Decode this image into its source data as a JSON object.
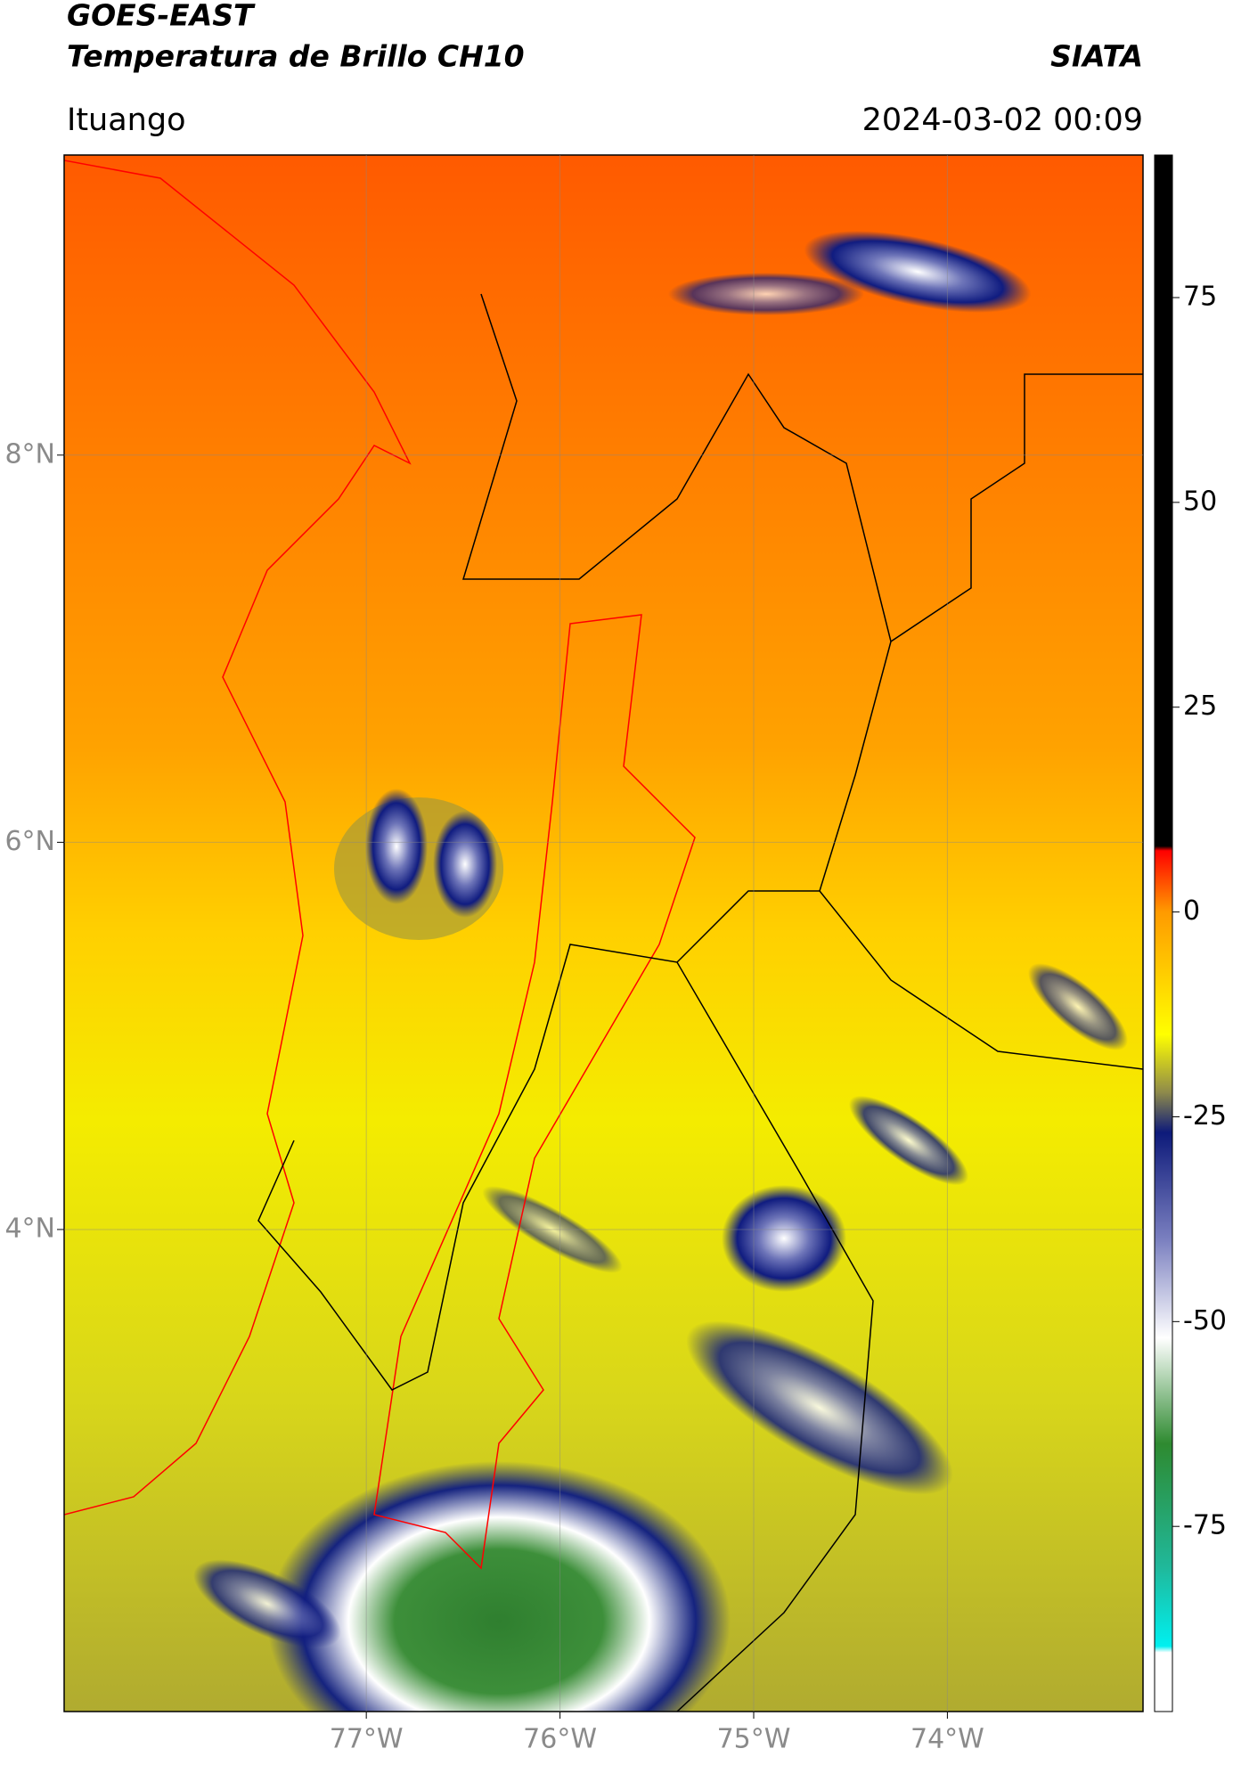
{
  "header": {
    "title": "GOES-EAST",
    "subtitle": "Temperatura de Brillo CH10",
    "source": "SIATA",
    "location": "Ituango",
    "datetime": "2024-03-02 00:09"
  },
  "map": {
    "xlim": [
      -78.56,
      -72.99
    ],
    "ylim": [
      1.51,
      9.55
    ],
    "xticks": [
      {
        "value": -77,
        "label": "77°W"
      },
      {
        "value": -76,
        "label": "76°W"
      },
      {
        "value": -75,
        "label": "75°W"
      },
      {
        "value": -74,
        "label": "74°W"
      }
    ],
    "yticks": [
      {
        "value": 8,
        "label": "8°N"
      },
      {
        "value": 6,
        "label": "6°N"
      },
      {
        "value": 4,
        "label": "4°N"
      }
    ],
    "grid": true
  },
  "colorbar": {
    "lim": [
      -97.6,
      92.4
    ],
    "ticks": [
      75,
      50,
      25,
      0,
      -25,
      -50,
      -75
    ]
  }
}
